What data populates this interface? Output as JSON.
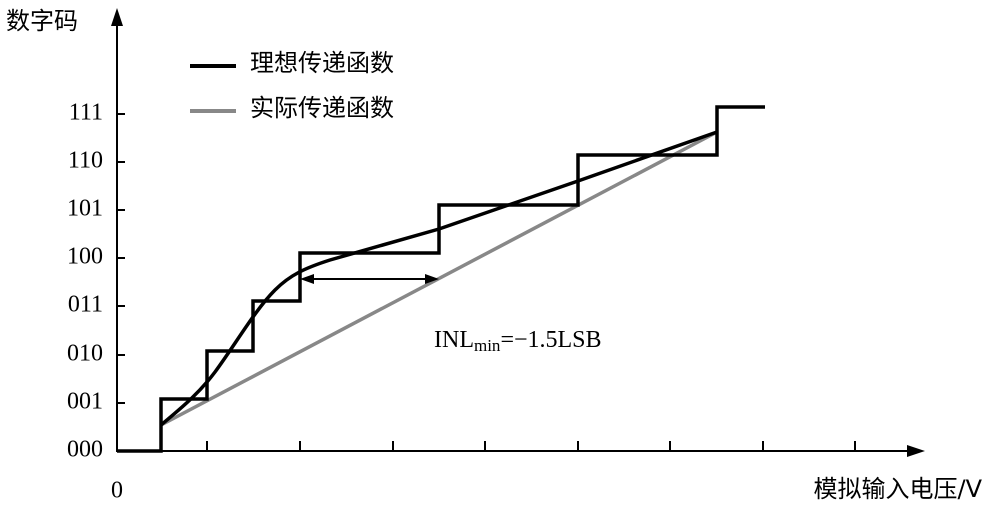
{
  "axes": {
    "y_title": "数字码",
    "x_title": "模拟输入电压/V",
    "origin": "0",
    "y_labels": [
      "111",
      "110",
      "101",
      "100",
      "011",
      "010",
      "001",
      "000"
    ]
  },
  "legend": [
    {
      "label": "理想传递函数"
    },
    {
      "label": "实际传递函数"
    }
  ],
  "annotation": {
    "text": "INL",
    "subscript": "min",
    "suffix": "=−1.5LSB"
  }
}
